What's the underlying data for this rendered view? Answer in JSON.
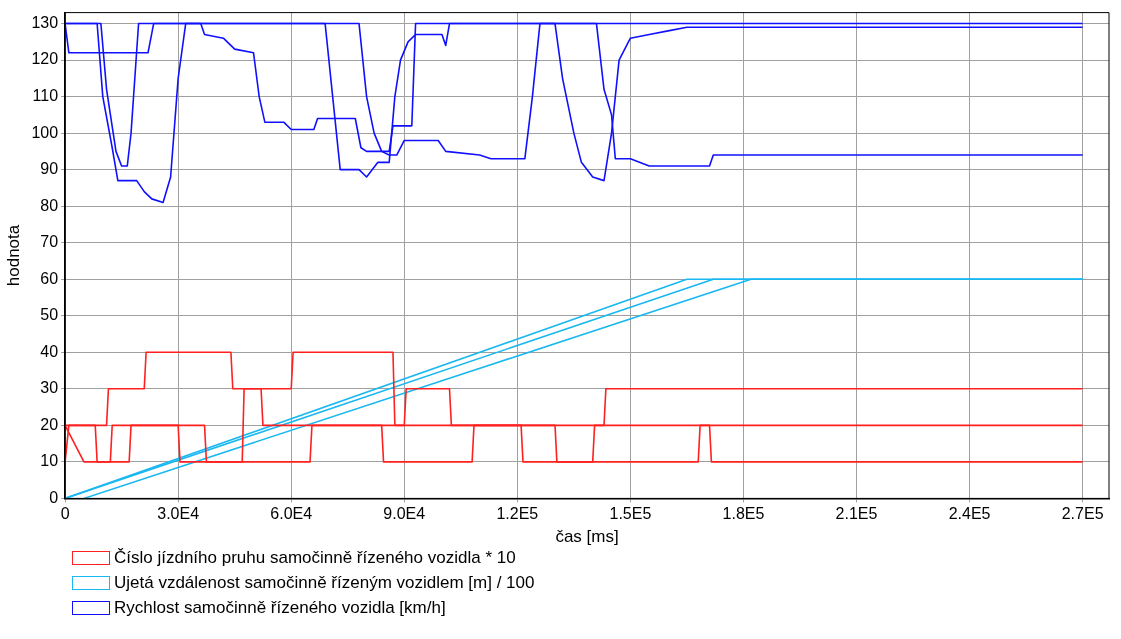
{
  "chart_data": {
    "type": "line",
    "xlabel": "čas [ms]",
    "ylabel": "hodnota",
    "xlim": [
      0,
      277000
    ],
    "ylim": [
      0,
      133
    ],
    "xticks": [
      0,
      {
        "value": 30000,
        "label": "3.0E4"
      },
      {
        "value": 60000,
        "label": "6.0E4"
      },
      {
        "value": 90000,
        "label": "9.0E4"
      },
      {
        "value": 120000,
        "label": "1.2E5"
      },
      {
        "value": 150000,
        "label": "1.5E5"
      },
      {
        "value": 180000,
        "label": "1.8E5"
      },
      {
        "value": 210000,
        "label": "2.1E5"
      },
      {
        "value": 240000,
        "label": "2.4E5"
      },
      {
        "value": 270000,
        "label": "2.7E5"
      }
    ],
    "yticks": [
      0,
      10,
      20,
      30,
      40,
      50,
      60,
      70,
      80,
      90,
      100,
      110,
      120,
      130
    ],
    "grid": true,
    "legend": "bottom",
    "marker": "none",
    "line_style": "solid",
    "series": [
      {
        "name": "Číslo jízdního pruhu samočinně řízeného vozidla * 10",
        "color": "#ff2020",
        "x": [
          0,
          1000,
          11000,
          11500,
          21000,
          21500,
          44000,
          44500,
          52000,
          52500,
          90000,
          90500,
          102000,
          102500,
          143000,
          143500,
          270000
        ],
        "values": [
          10,
          20,
          20,
          30,
          30,
          40,
          40,
          30,
          30,
          20,
          20,
          30,
          30,
          20,
          20,
          30,
          30
        ]
      },
      {
        "color": "#ff2020",
        "x": [
          0,
          5000,
          12000,
          12500,
          30000,
          30500,
          47000,
          47500,
          60000,
          60500,
          87000,
          87500,
          121000,
          121500,
          140000,
          140500,
          270000
        ],
        "values": [
          20,
          10,
          10,
          20,
          20,
          10,
          10,
          30,
          30,
          40,
          40,
          20,
          20,
          10,
          10,
          20,
          20
        ]
      },
      {
        "color": "#ff2020",
        "x": [
          0,
          8000,
          8500,
          17000,
          17500,
          37000,
          37500,
          65000,
          65500,
          84000,
          84500,
          108000,
          108500,
          130000,
          130500,
          168000,
          168500,
          171000,
          171500,
          270000
        ],
        "values": [
          20,
          20,
          10,
          10,
          20,
          20,
          10,
          10,
          20,
          20,
          10,
          10,
          20,
          20,
          10,
          10,
          20,
          20,
          10,
          10
        ]
      },
      {
        "name": "Ujetá vzdálenost samočinně řízeným vozidlem [m] / 100",
        "color": "#1ab8f0",
        "x": [
          0,
          165000,
          270000
        ],
        "values": [
          0,
          60,
          60
        ]
      },
      {
        "color": "#1ab8f0",
        "x": [
          0,
          172000,
          270000
        ],
        "values": [
          0,
          60,
          60
        ]
      },
      {
        "color": "#1ab8f0",
        "x": [
          5000,
          182000,
          270000
        ],
        "values": [
          0,
          60,
          60
        ]
      },
      {
        "name": "Rychlost samočinně řízeného vozidla [km/h]",
        "color": "#1010ff",
        "x": [
          0,
          1000,
          22000,
          23500,
          36000,
          37000,
          42000,
          45000,
          50000,
          51500,
          53000,
          58000,
          60000,
          66000,
          67000,
          77000,
          78500,
          80000,
          86000,
          87000,
          92000,
          93000,
          270000
        ],
        "values": [
          130,
          122,
          122,
          130,
          130,
          127,
          126,
          123,
          122,
          110,
          103,
          103,
          101,
          101,
          104,
          104,
          96,
          95,
          95,
          102,
          102,
          130,
          130
        ]
      },
      {
        "color": "#1010ff",
        "x": [
          0,
          8500,
          10000,
          12500,
          14000,
          19000,
          21000,
          23000,
          26000,
          28000,
          30000,
          32000,
          69000,
          71000,
          73000,
          78000,
          80000,
          83000,
          86000,
          87500,
          89000,
          91000,
          93000,
          100000,
          101000,
          102000,
          130000,
          132000,
          135000,
          137000,
          140000,
          143000,
          145000,
          147000,
          150000,
          155000,
          160000,
          165000,
          270000
        ],
        "values": [
          130,
          130,
          110,
          96,
          87,
          87,
          84,
          82,
          81,
          88,
          115,
          130,
          130,
          110,
          90,
          90,
          88,
          92,
          92,
          110,
          120,
          125,
          127,
          127,
          124,
          130,
          130,
          115,
          100,
          92,
          88,
          87,
          100,
          120,
          126,
          127,
          128,
          129,
          129
        ]
      },
      {
        "color": "#1010ff",
        "x": [
          0,
          9500,
          11000,
          13500,
          15000,
          16500,
          17500,
          19500,
          78000,
          80000,
          82000,
          84000,
          86000,
          88000,
          90000,
          99000,
          101000,
          110000,
          113000,
          122000,
          124000,
          126000,
          141000,
          143000,
          145000,
          146000,
          150000,
          155000,
          171000,
          172000,
          270000
        ],
        "values": [
          130,
          130,
          112,
          95,
          91,
          91,
          100,
          130,
          130,
          110,
          100,
          95,
          94,
          94,
          98,
          98,
          95,
          94,
          93,
          93,
          110,
          130,
          130,
          112,
          105,
          93,
          93,
          91,
          91,
          94,
          94
        ]
      }
    ]
  }
}
